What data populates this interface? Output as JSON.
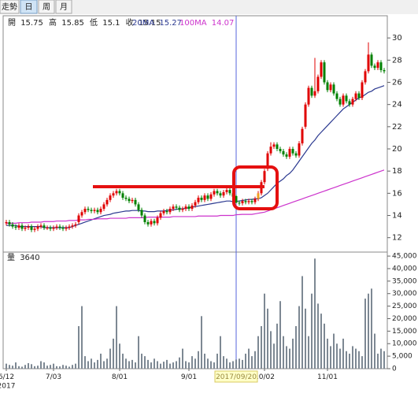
{
  "tabs": [
    "走勢",
    "日",
    "周",
    "月"
  ],
  "chart_data": {
    "type": "candlestick",
    "ohlc_labels": [
      "開",
      "高",
      "低",
      "收"
    ],
    "volume_label": "量",
    "year": "2017",
    "categories": [
      "6/12",
      null,
      null,
      null,
      null,
      null,
      null,
      null,
      null,
      null,
      null,
      null,
      null,
      null,
      null,
      "7/03",
      null,
      null,
      null,
      null,
      null,
      null,
      null,
      null,
      null,
      null,
      null,
      null,
      null,
      null,
      null,
      null,
      null,
      null,
      null,
      null,
      "8/01",
      null,
      null,
      null,
      null,
      null,
      null,
      null,
      null,
      null,
      null,
      null,
      null,
      null,
      null,
      null,
      null,
      null,
      null,
      null,
      null,
      null,
      "9/01",
      null,
      null,
      null,
      null,
      null,
      null,
      null,
      null,
      null,
      null,
      null,
      null,
      null,
      null,
      "2017/09/20",
      null,
      null,
      null,
      null,
      null,
      null,
      null,
      null,
      "10/02",
      null,
      null,
      null,
      null,
      null,
      null,
      null,
      null,
      null,
      null,
      null,
      null,
      null,
      null,
      null,
      null,
      null,
      null,
      null,
      "11/01",
      null,
      null,
      null,
      null,
      null,
      null,
      null,
      null,
      null,
      null,
      null,
      null,
      null,
      null,
      null,
      null,
      null,
      null
    ],
    "open": [
      13.3,
      13.4,
      13.2,
      13.0,
      12.9,
      13.1,
      12.8,
      12.9,
      13.0,
      12.7,
      12.8,
      13.0,
      13.1,
      12.9,
      12.9,
      12.8,
      12.9,
      13.0,
      12.9,
      12.8,
      12.9,
      13.0,
      13.1,
      13.4,
      14.0,
      14.3,
      14.6,
      14.5,
      14.4,
      14.5,
      14.3,
      14.6,
      15.0,
      15.4,
      15.8,
      16.0,
      16.2,
      16.0,
      15.6,
      15.5,
      15.3,
      15.4,
      15.0,
      14.5,
      14.0,
      13.4,
      13.2,
      13.5,
      13.3,
      13.8,
      14.2,
      14.4,
      14.3,
      14.6,
      14.8,
      14.7,
      14.5,
      14.6,
      14.8,
      14.6,
      14.9,
      15.2,
      15.6,
      15.4,
      15.8,
      15.5,
      15.9,
      16.2,
      16.0,
      15.8,
      16.1,
      16.3,
      16.0,
      15.75,
      15.15,
      15.1,
      15.3,
      15.2,
      15.3,
      15.2,
      15.5,
      16.0,
      17.0,
      18.2,
      19.6,
      20.2,
      20.4,
      20.0,
      19.8,
      19.5,
      19.3,
      20.0,
      19.6,
      19.4,
      20.5,
      22.0,
      24.0,
      25.5,
      24.8,
      25.2,
      26.5,
      27.8,
      26.0,
      25.3,
      25.8,
      25.0,
      24.5,
      24.0,
      24.8,
      24.3,
      24.0,
      24.5,
      25.0,
      24.6,
      26.0,
      27.0,
      28.5,
      27.5,
      27.3,
      27.8,
      27.1
    ],
    "high": [
      13.6,
      13.6,
      13.4,
      13.2,
      13.3,
      13.3,
      13.1,
      13.2,
      13.2,
      13.0,
      13.2,
      13.3,
      13.3,
      13.1,
      13.1,
      13.1,
      13.2,
      13.2,
      13.1,
      13.1,
      13.2,
      13.3,
      13.4,
      14.2,
      14.5,
      14.8,
      14.8,
      14.7,
      14.7,
      14.7,
      14.8,
      15.2,
      15.6,
      16.0,
      16.2,
      16.4,
      16.4,
      16.2,
      15.8,
      15.7,
      15.6,
      15.6,
      15.2,
      14.7,
      14.2,
      13.6,
      13.7,
      13.7,
      14.0,
      14.4,
      14.6,
      14.6,
      14.8,
      15.0,
      15.0,
      14.9,
      14.8,
      15.0,
      15.0,
      15.1,
      15.4,
      15.8,
      15.8,
      16.0,
      16.0,
      16.1,
      16.4,
      16.4,
      16.2,
      16.3,
      16.5,
      16.5,
      16.2,
      15.85,
      15.35,
      15.5,
      15.5,
      15.5,
      15.5,
      15.7,
      16.2,
      17.2,
      18.2,
      19.8,
      20.6,
      20.6,
      20.6,
      20.2,
      20.0,
      19.7,
      20.2,
      20.2,
      19.8,
      20.7,
      22.0,
      24.2,
      25.7,
      25.7,
      28.2,
      26.7,
      28.0,
      28.0,
      26.2,
      26.0,
      26.0,
      25.2,
      24.7,
      25.0,
      25.0,
      24.5,
      24.7,
      25.2,
      25.2,
      26.2,
      27.2,
      29.6,
      28.7,
      27.7,
      28.0,
      28.0,
      27.3
    ],
    "low": [
      13.1,
      13.0,
      12.8,
      12.7,
      12.7,
      12.6,
      12.6,
      12.7,
      12.5,
      12.5,
      12.6,
      12.8,
      12.7,
      12.7,
      12.6,
      12.6,
      12.7,
      12.7,
      12.6,
      12.6,
      12.7,
      12.8,
      12.9,
      13.2,
      13.8,
      14.1,
      14.3,
      14.2,
      14.2,
      14.1,
      14.1,
      14.4,
      14.8,
      15.2,
      15.6,
      15.8,
      15.8,
      15.4,
      15.3,
      15.1,
      15.1,
      14.8,
      14.3,
      13.8,
      13.2,
      13.0,
      13.0,
      13.1,
      13.1,
      13.6,
      14.0,
      14.1,
      14.1,
      14.4,
      14.5,
      14.3,
      14.3,
      14.4,
      14.4,
      14.4,
      14.7,
      15.0,
      15.2,
      15.2,
      15.3,
      15.3,
      15.7,
      15.8,
      15.6,
      15.6,
      15.9,
      15.8,
      15.5,
      15.1,
      14.9,
      14.9,
      15.0,
      15.0,
      15.0,
      15.0,
      15.3,
      15.8,
      16.8,
      18.0,
      19.4,
      20.0,
      19.8,
      19.6,
      19.3,
      19.1,
      19.1,
      19.4,
      19.2,
      19.2,
      20.3,
      21.8,
      23.8,
      24.6,
      24.6,
      25.0,
      26.3,
      25.8,
      25.1,
      25.1,
      24.8,
      24.3,
      23.8,
      23.8,
      24.1,
      23.8,
      23.8,
      24.3,
      24.4,
      24.4,
      25.8,
      26.8,
      27.3,
      27.1,
      27.1,
      26.9,
      26.8
    ],
    "close": [
      13.4,
      13.2,
      13.0,
      12.9,
      13.1,
      12.8,
      12.9,
      13.0,
      12.7,
      12.8,
      13.0,
      13.1,
      12.9,
      12.9,
      12.8,
      12.9,
      13.0,
      12.9,
      12.8,
      12.9,
      13.0,
      13.1,
      13.2,
      14.0,
      14.3,
      14.6,
      14.5,
      14.4,
      14.5,
      14.3,
      14.6,
      15.0,
      15.4,
      15.8,
      16.0,
      16.2,
      16.0,
      15.6,
      15.5,
      15.3,
      15.4,
      15.0,
      14.5,
      14.0,
      13.4,
      13.2,
      13.5,
      13.3,
      13.8,
      14.2,
      14.4,
      14.3,
      14.6,
      14.8,
      14.7,
      14.5,
      14.6,
      14.8,
      14.6,
      14.9,
      15.2,
      15.6,
      15.4,
      15.8,
      15.5,
      15.9,
      16.2,
      16.0,
      15.8,
      16.1,
      16.3,
      16.0,
      15.7,
      15.15,
      15.1,
      15.3,
      15.2,
      15.3,
      15.2,
      15.5,
      16.0,
      17.0,
      18.0,
      19.6,
      20.2,
      20.4,
      20.0,
      19.8,
      19.5,
      19.3,
      20.0,
      19.6,
      19.4,
      20.5,
      21.8,
      24.0,
      25.5,
      24.8,
      25.2,
      26.5,
      27.8,
      26.0,
      25.3,
      25.8,
      25.0,
      24.5,
      24.0,
      24.8,
      24.3,
      24.0,
      24.5,
      25.0,
      24.6,
      26.0,
      27.0,
      28.5,
      27.5,
      27.3,
      27.8,
      27.1,
      27.0
    ],
    "volume": [
      2000,
      1500,
      1200,
      2500,
      1000,
      800,
      1500,
      2200,
      1800,
      1000,
      1200,
      3000,
      2500,
      1200,
      1500,
      2000,
      1000,
      900,
      1500,
      1200,
      800,
      1500,
      2000,
      17000,
      25000,
      5000,
      3000,
      4000,
      2500,
      3500,
      6000,
      3000,
      4000,
      8000,
      12000,
      25000,
      10000,
      6000,
      4000,
      3000,
      3500,
      2500,
      13000,
      6000,
      5000,
      3500,
      2500,
      4000,
      3000,
      2000,
      2800,
      3500,
      2000,
      2500,
      3000,
      4500,
      8000,
      3000,
      2500,
      5000,
      4000,
      7000,
      21000,
      6000,
      4000,
      3000,
      2500,
      6000,
      13000,
      5000,
      4000,
      2500,
      3000,
      3640,
      4000,
      3500,
      6000,
      8000,
      5000,
      7000,
      13000,
      17000,
      30000,
      24000,
      15000,
      10000,
      18000,
      27000,
      13000,
      9000,
      8000,
      12000,
      17000,
      25000,
      37000,
      24000,
      13000,
      30000,
      44000,
      26000,
      22000,
      18000,
      12000,
      9000,
      14000,
      10000,
      8000,
      12000,
      7000,
      6000,
      9000,
      8000,
      7000,
      5000,
      28000,
      30000,
      32000,
      14000,
      6000,
      8000,
      7000
    ],
    "series": [
      {
        "name": "20MA",
        "color": "#2b3990",
        "values": [
          13.1,
          13.1,
          13.1,
          13.1,
          13.0,
          13.0,
          13.0,
          13.0,
          13.0,
          13.0,
          13.0,
          13.0,
          12.9,
          12.9,
          12.9,
          12.9,
          12.9,
          12.9,
          12.9,
          12.9,
          12.9,
          13.0,
          13.1,
          13.2,
          13.3,
          13.4,
          13.5,
          13.6,
          13.7,
          13.8,
          13.9,
          14.0,
          14.05,
          14.1,
          14.2,
          14.25,
          14.3,
          14.35,
          14.4,
          14.4,
          14.45,
          14.45,
          14.45,
          14.4,
          14.4,
          14.35,
          14.35,
          14.35,
          14.4,
          14.4,
          14.4,
          14.45,
          14.5,
          14.5,
          14.55,
          14.6,
          14.6,
          14.65,
          14.7,
          14.75,
          14.8,
          14.85,
          14.9,
          14.95,
          15.0,
          15.05,
          15.1,
          15.15,
          15.2,
          15.25,
          15.3,
          15.3,
          15.25,
          15.27,
          15.3,
          15.35,
          15.4,
          15.45,
          15.45,
          15.5,
          15.5,
          15.6,
          15.8,
          16.0,
          16.3,
          16.6,
          16.9,
          17.1,
          17.3,
          17.6,
          17.8,
          18.1,
          18.5,
          18.9,
          19.3,
          19.7,
          20.1,
          20.5,
          20.8,
          21.2,
          21.5,
          21.8,
          22.1,
          22.4,
          22.7,
          23.0,
          23.3,
          23.6,
          23.8,
          24.0,
          24.2,
          24.4,
          24.6,
          24.7,
          24.9,
          25.1,
          25.2,
          25.4,
          25.5,
          25.6,
          25.7
        ]
      },
      {
        "name": "100MA",
        "color": "#cc33cc",
        "values": [
          13.3,
          13.3,
          13.3,
          13.3,
          13.35,
          13.35,
          13.35,
          13.35,
          13.4,
          13.4,
          13.4,
          13.4,
          13.45,
          13.45,
          13.45,
          13.45,
          13.5,
          13.5,
          13.5,
          13.5,
          13.55,
          13.55,
          13.55,
          13.6,
          13.6,
          13.6,
          13.65,
          13.65,
          13.65,
          13.7,
          13.7,
          13.7,
          13.7,
          13.75,
          13.75,
          13.75,
          13.75,
          13.75,
          13.75,
          13.8,
          13.8,
          13.8,
          13.8,
          13.8,
          13.8,
          13.85,
          13.85,
          13.85,
          13.85,
          13.85,
          13.85,
          13.85,
          13.85,
          13.9,
          13.9,
          13.9,
          13.9,
          13.9,
          13.9,
          13.9,
          13.9,
          13.95,
          13.95,
          13.95,
          13.95,
          13.95,
          13.95,
          13.95,
          14.0,
          14.0,
          14.0,
          14.0,
          14.0,
          14.07,
          14.08,
          14.1,
          14.1,
          14.1,
          14.1,
          14.15,
          14.2,
          14.25,
          14.3,
          14.4,
          14.5,
          14.6,
          14.7,
          14.8,
          14.9,
          15.0,
          15.1,
          15.2,
          15.3,
          15.4,
          15.5,
          15.6,
          15.7,
          15.8,
          15.9,
          16.0,
          16.1,
          16.2,
          16.3,
          16.4,
          16.5,
          16.6,
          16.7,
          16.8,
          16.9,
          17.0,
          17.1,
          17.2,
          17.3,
          17.4,
          17.5,
          17.6,
          17.7,
          17.8,
          17.9,
          18.0,
          18.1
        ]
      }
    ],
    "up_color": "#e00000",
    "down_color": "#008000",
    "volume_color": "#7d8893",
    "ylim": [
      10.7,
      32
    ],
    "yticks": [
      12,
      14,
      16,
      18,
      20,
      22,
      24,
      26,
      28,
      30
    ],
    "volume_ylim": [
      0,
      46600
    ],
    "volume_yticks": [
      0,
      {
        "value": 5000,
        "label": "5,000"
      },
      {
        "value": 10000,
        "label": "10,000"
      },
      {
        "value": 15000,
        "label": "15,000"
      },
      {
        "value": 20000,
        "label": "20,000"
      },
      {
        "value": 25000,
        "label": "25,000"
      },
      {
        "value": 30000,
        "label": "30,000"
      },
      {
        "value": 35000,
        "label": "35,000"
      },
      {
        "value": 40000,
        "label": "40,000"
      },
      {
        "value": 45000,
        "label": "45,000"
      }
    ]
  }
}
